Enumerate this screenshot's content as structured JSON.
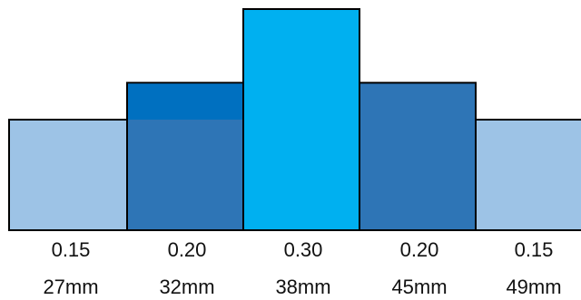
{
  "chart_data": {
    "type": "bar",
    "categories": [
      "27mm",
      "32mm",
      "38mm",
      "45mm",
      "49mm"
    ],
    "values": [
      0.15,
      0.2,
      0.3,
      0.2,
      0.15
    ],
    "value_labels": [
      "0.15",
      "0.20",
      "0.30",
      "0.20",
      "0.15"
    ],
    "ylim": [
      0,
      0.3
    ],
    "grid": false,
    "legend": "none",
    "bar_colors": [
      "#9dc3e6",
      "#2e75b6",
      "#00b0f0",
      "#2e75b6",
      "#9dc3e6"
    ],
    "overlay_color": "#0070c0",
    "title": "",
    "xlabel": "",
    "ylabel": ""
  }
}
